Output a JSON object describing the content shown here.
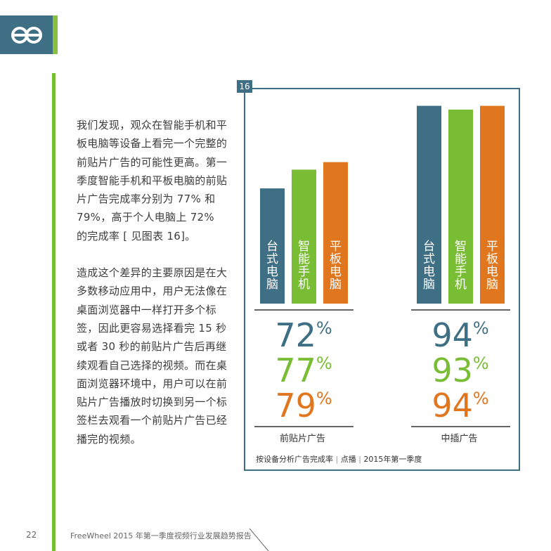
{
  "page": {
    "number": "22",
    "footer_title": "FreeWheel 2015 年第一季度视频行业发展趋势报告"
  },
  "colors": {
    "teal": "#3f6f85",
    "green": "#79bd34",
    "orange": "#e0771f"
  },
  "body": {
    "para1": "我们发现，观众在智能手机和平板电脑等设备上看完一个完整的前贴片广告的可能性更高。第一季度智能手机和平板电脑的前贴片广告完成率分别为 77% 和 79%，高于个人电脑上 72% 的完成率 [ 见图表 16]。",
    "para2": "造成这个差异的主要原因是在大多数移动应用中，用户无法像在桌面浏览器中一样打开多个标签，因此更容易选择看完 15 秒或者 30 秒的前贴片广告后再继续观看自己选择的视频。而在桌面浏览器环境中，用户可以在前贴片广告播放时切换到另一个标签栏去观看一个前贴片广告已经播完的视频。"
  },
  "figure": {
    "number": "16"
  },
  "chart_data": {
    "type": "bar",
    "categories": [
      "前贴片广告",
      "中插广告"
    ],
    "series": [
      {
        "name": "台式电脑",
        "values": [
          72,
          94
        ],
        "color": "#3f6f85"
      },
      {
        "name": "智能手机",
        "values": [
          77,
          93
        ],
        "color": "#79bd34"
      },
      {
        "name": "平板电脑",
        "values": [
          79,
          94
        ],
        "color": "#e0771f"
      }
    ],
    "percent_sign": "%",
    "ylim": [
      0,
      100
    ],
    "caption": {
      "parts": [
        "按设备分析广告完成率",
        "点播",
        "2015年第一季度"
      ],
      "separator": "|"
    }
  }
}
